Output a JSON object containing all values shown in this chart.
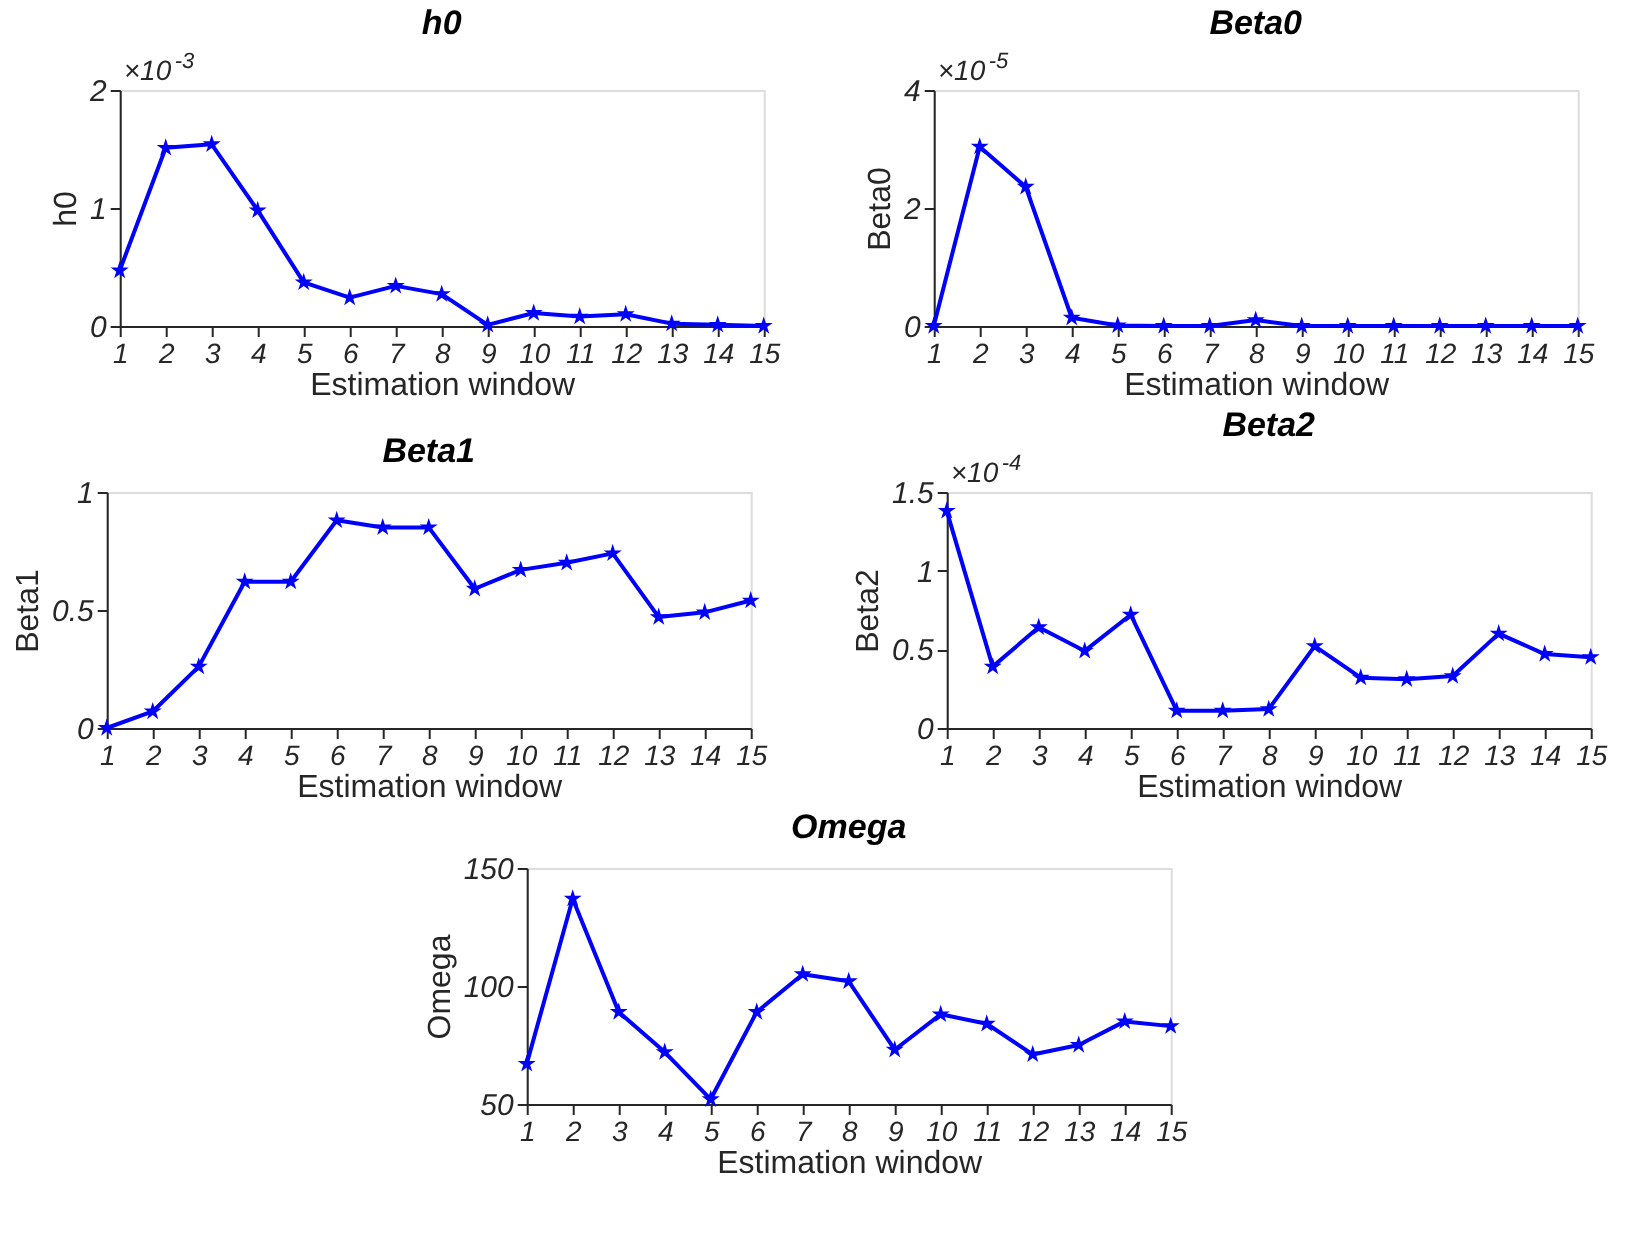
{
  "chart_data": [
    {
      "type": "line",
      "title": "h0",
      "xlabel": "Estimation window",
      "ylabel": "h0",
      "marker": "star",
      "grid": false,
      "annotations": [
        "×10$^{-3}$"
      ],
      "x": [
        1,
        2,
        3,
        4,
        5,
        6,
        7,
        8,
        9,
        10,
        11,
        12,
        13,
        14,
        15
      ],
      "xlim": [
        1,
        15
      ],
      "xticks": [
        1,
        2,
        3,
        4,
        5,
        6,
        7,
        8,
        9,
        10,
        11,
        12,
        13,
        14,
        15
      ],
      "ylim": [
        0,
        2
      ],
      "yticks": [
        0,
        1,
        2
      ],
      "series": [
        {
          "color": "#0000ff",
          "values": [
            0.47,
            1.51,
            1.54,
            0.98,
            0.37,
            0.24,
            0.34,
            0.27,
            0.01,
            0.11,
            0.08,
            0.1,
            0.02,
            0.01,
            0.0
          ]
        }
      ]
    },
    {
      "type": "line",
      "title": "Beta0",
      "xlabel": "Estimation window",
      "ylabel": "Beta0",
      "marker": "star",
      "grid": false,
      "annotations": [
        "×10$^{-5}$"
      ],
      "x": [
        1,
        2,
        3,
        4,
        5,
        6,
        7,
        8,
        9,
        10,
        11,
        12,
        13,
        14,
        15
      ],
      "xlim": [
        1,
        15
      ],
      "xticks": [
        1,
        2,
        3,
        4,
        5,
        6,
        7,
        8,
        9,
        10,
        11,
        12,
        13,
        14,
        15
      ],
      "ylim": [
        0,
        4
      ],
      "yticks": [
        0,
        2,
        4
      ],
      "series": [
        {
          "color": "#0000ff",
          "values": [
            0.0,
            3.04,
            2.36,
            0.14,
            0.01,
            0.0,
            0.0,
            0.1,
            0.0,
            0.0,
            0.0,
            0.0,
            0.0,
            0.0,
            0.0
          ]
        }
      ]
    },
    {
      "type": "line",
      "title": "Beta1",
      "xlabel": "Estimation window",
      "ylabel": "Beta1",
      "marker": "star",
      "grid": false,
      "x": [
        1,
        2,
        3,
        4,
        5,
        6,
        7,
        8,
        9,
        10,
        11,
        12,
        13,
        14,
        15
      ],
      "xlim": [
        1,
        15
      ],
      "xticks": [
        1,
        2,
        3,
        4,
        5,
        6,
        7,
        8,
        9,
        10,
        11,
        12,
        13,
        14,
        15
      ],
      "ylim": [
        0,
        1
      ],
      "yticks": [
        0,
        0.5,
        1
      ],
      "series": [
        {
          "color": "#0000ff",
          "values": [
            0.0,
            0.07,
            0.26,
            0.62,
            0.62,
            0.88,
            0.85,
            0.85,
            0.59,
            0.67,
            0.7,
            0.74,
            0.47,
            0.49,
            0.54
          ]
        }
      ]
    },
    {
      "type": "line",
      "title": "Beta2",
      "xlabel": "Estimation window",
      "ylabel": "Beta2",
      "marker": "star",
      "grid": false,
      "annotations": [
        "×10$^{-4}$"
      ],
      "x": [
        1,
        2,
        3,
        4,
        5,
        6,
        7,
        8,
        9,
        10,
        11,
        12,
        13,
        14,
        15
      ],
      "xlim": [
        1,
        15
      ],
      "xticks": [
        1,
        2,
        3,
        4,
        5,
        6,
        7,
        8,
        9,
        10,
        11,
        12,
        13,
        14,
        15
      ],
      "ylim": [
        0,
        1.5
      ],
      "yticks": [
        0,
        0.5,
        1,
        1.5
      ],
      "series": [
        {
          "color": "#0000ff",
          "values": [
            1.38,
            0.39,
            0.64,
            0.49,
            0.72,
            0.11,
            0.11,
            0.12,
            0.52,
            0.32,
            0.31,
            0.33,
            0.6,
            0.47,
            0.45
          ]
        }
      ]
    },
    {
      "type": "line",
      "title": "Omega",
      "xlabel": "Estimation window",
      "ylabel": "Omega",
      "marker": "star",
      "grid": false,
      "x": [
        1,
        2,
        3,
        4,
        5,
        6,
        7,
        8,
        9,
        10,
        11,
        12,
        13,
        14,
        15
      ],
      "xlim": [
        1,
        15
      ],
      "xticks": [
        1,
        2,
        3,
        4,
        5,
        6,
        7,
        8,
        9,
        10,
        11,
        12,
        13,
        14,
        15
      ],
      "ylim": [
        50,
        150
      ],
      "yticks": [
        50,
        100,
        150
      ],
      "series": [
        {
          "color": "#0000ff",
          "values": [
            67,
            137,
            89,
            72,
            52,
            89,
            105,
            102,
            73,
            88,
            84,
            71,
            75,
            85,
            83
          ]
        }
      ]
    }
  ]
}
